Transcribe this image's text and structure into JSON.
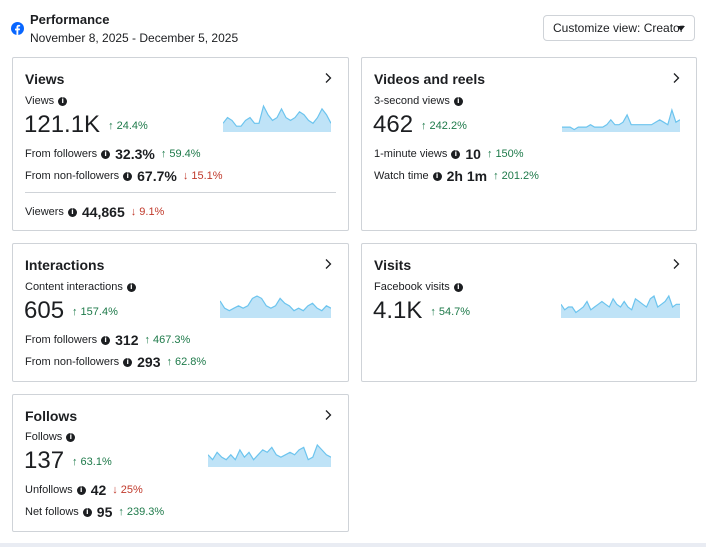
{
  "header": {
    "title": "Performance",
    "date_range": "November 8, 2025 - December 5, 2025",
    "customize_label": "Customize view: Creator"
  },
  "cards": {
    "views": {
      "title": "Views",
      "main_label": "Views",
      "main_value": "121.1K",
      "main_delta": "24.4%",
      "rows": [
        {
          "label": "From followers",
          "value": "32.3%",
          "delta": "59.4%"
        },
        {
          "label": "From non-followers",
          "value": "67.7%",
          "delta": "15.1%"
        },
        {
          "label": "Viewers",
          "value": "44,865",
          "delta": "9.1%"
        }
      ]
    },
    "videos": {
      "title": "Videos and reels",
      "main_label": "3-second views",
      "main_value": "462",
      "main_delta": "242.2%",
      "rows": [
        {
          "label": "1-minute views",
          "value": "10",
          "delta": "150%"
        },
        {
          "label": "Watch time",
          "value": "2h 1m",
          "delta": "201.2%"
        }
      ]
    },
    "interactions": {
      "title": "Interactions",
      "main_label": "Content interactions",
      "main_value": "605",
      "main_delta": "157.4%",
      "rows": [
        {
          "label": "From followers",
          "value": "312",
          "delta": "467.3%"
        },
        {
          "label": "From non-followers",
          "value": "293",
          "delta": "62.8%"
        }
      ]
    },
    "visits": {
      "title": "Visits",
      "main_label": "Facebook visits",
      "main_value": "4.1K",
      "main_delta": "54.7%"
    },
    "follows": {
      "title": "Follows",
      "main_label": "Follows",
      "main_value": "137",
      "main_delta": "63.1%",
      "rows": [
        {
          "label": "Unfollows",
          "value": "42",
          "delta": "25%"
        },
        {
          "label": "Net follows",
          "value": "95",
          "delta": "239.3%"
        }
      ]
    }
  },
  "colors": {
    "up": "#1e7a4a",
    "down": "#c0392b",
    "spark_fill": "#bfe3f7",
    "spark_line": "#6cc4ee",
    "fb_blue": "#0866ff"
  },
  "icons": {
    "logo": "facebook-logo-icon",
    "chevron": "chevron-right-icon",
    "info": "info-icon",
    "up": "arrow-up-icon",
    "down": "arrow-down-icon"
  },
  "sparklines": {
    "views": [
      3,
      5,
      4,
      2,
      2,
      4,
      5,
      3,
      3,
      9,
      6,
      4,
      5,
      8,
      5,
      4,
      5,
      7,
      6,
      4,
      3,
      5,
      8,
      6,
      3
    ],
    "videos": [
      2,
      2,
      2,
      1,
      2,
      2,
      2,
      3,
      2,
      2,
      2,
      3,
      5,
      3,
      3,
      4,
      7,
      3,
      3,
      3,
      3,
      3,
      3,
      4,
      5,
      4,
      3,
      9,
      4,
      5
    ],
    "interactions": [
      7,
      4,
      3,
      4,
      5,
      4,
      5,
      8,
      9,
      8,
      5,
      4,
      5,
      8,
      6,
      5,
      3,
      4,
      3,
      5,
      6,
      4,
      3,
      5,
      4
    ],
    "visits": [
      5,
      3,
      4,
      4,
      2,
      3,
      4,
      6,
      3,
      4,
      5,
      6,
      5,
      4,
      7,
      5,
      4,
      6,
      4,
      3,
      7,
      6,
      5,
      4,
      7,
      8,
      4,
      5,
      6,
      8,
      4,
      5,
      5
    ],
    "follows": [
      5,
      3,
      6,
      4,
      3,
      5,
      3,
      7,
      4,
      6,
      3,
      5,
      7,
      6,
      8,
      5,
      4,
      5,
      6,
      5,
      7,
      8,
      3,
      4,
      9,
      7,
      5,
      4
    ]
  }
}
